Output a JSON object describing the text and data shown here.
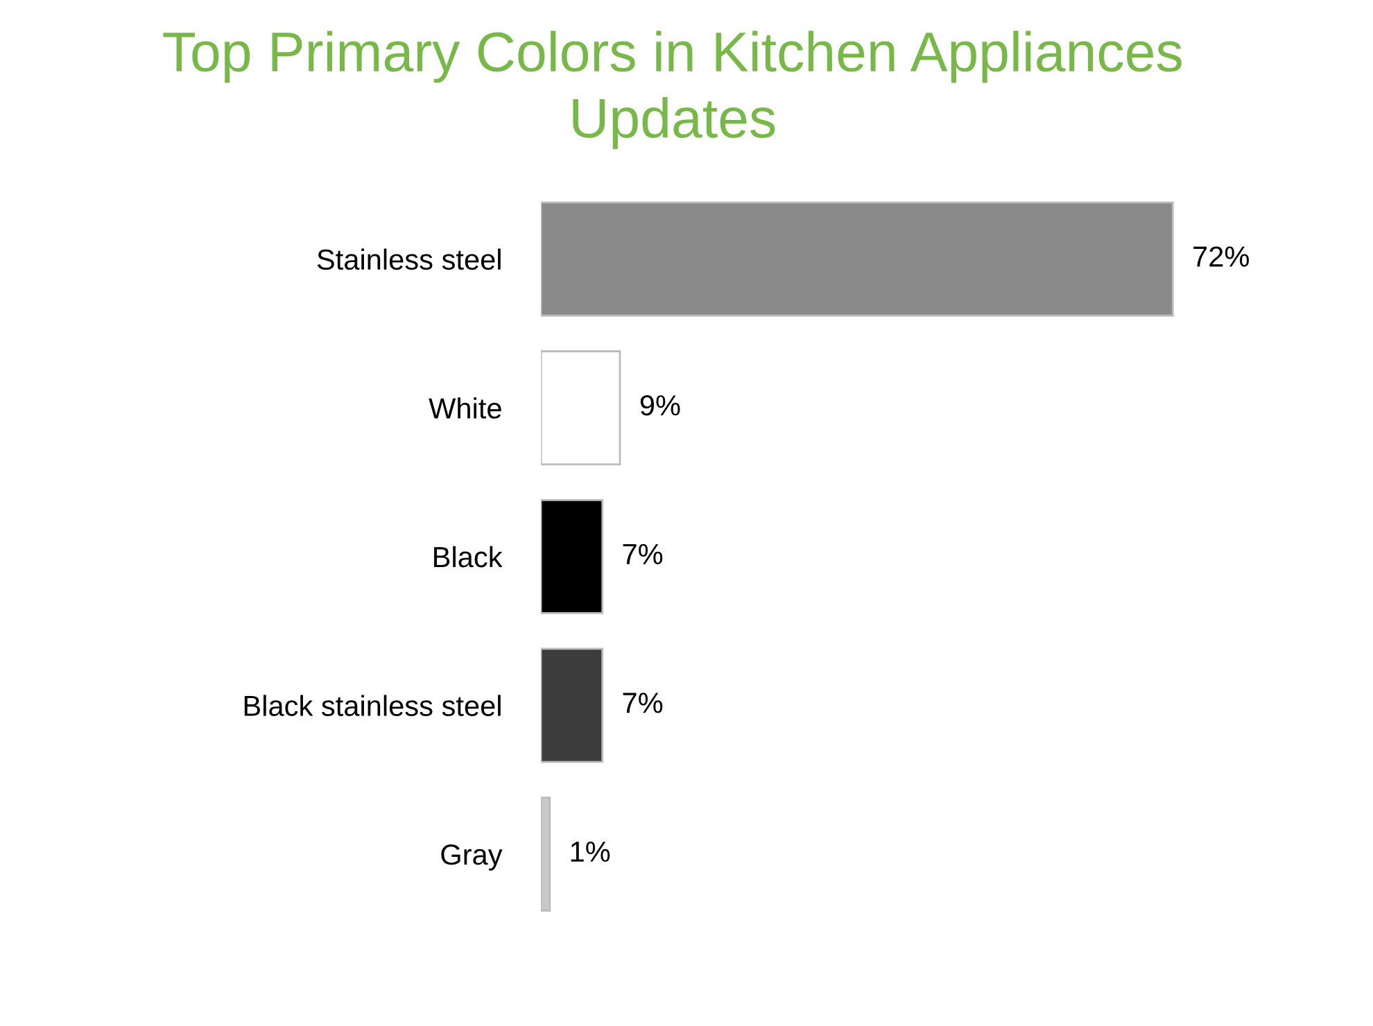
{
  "chart_data": {
    "type": "bar",
    "orientation": "horizontal",
    "title": "Top Primary Colors in Kitchen Appliances\nUpdates",
    "categories": [
      "Stainless steel",
      "White",
      "Black",
      "Black stainless steel",
      "Gray"
    ],
    "values": [
      72,
      9,
      7,
      7,
      1
    ],
    "colors": [
      "#8a8a8a",
      "#ffffff",
      "#000000",
      "#3c3c3c",
      "#c8c8c8"
    ],
    "value_labels": [
      "72%",
      "9%",
      "7%",
      "7%",
      "1%"
    ],
    "grid": false,
    "legend": false
  }
}
